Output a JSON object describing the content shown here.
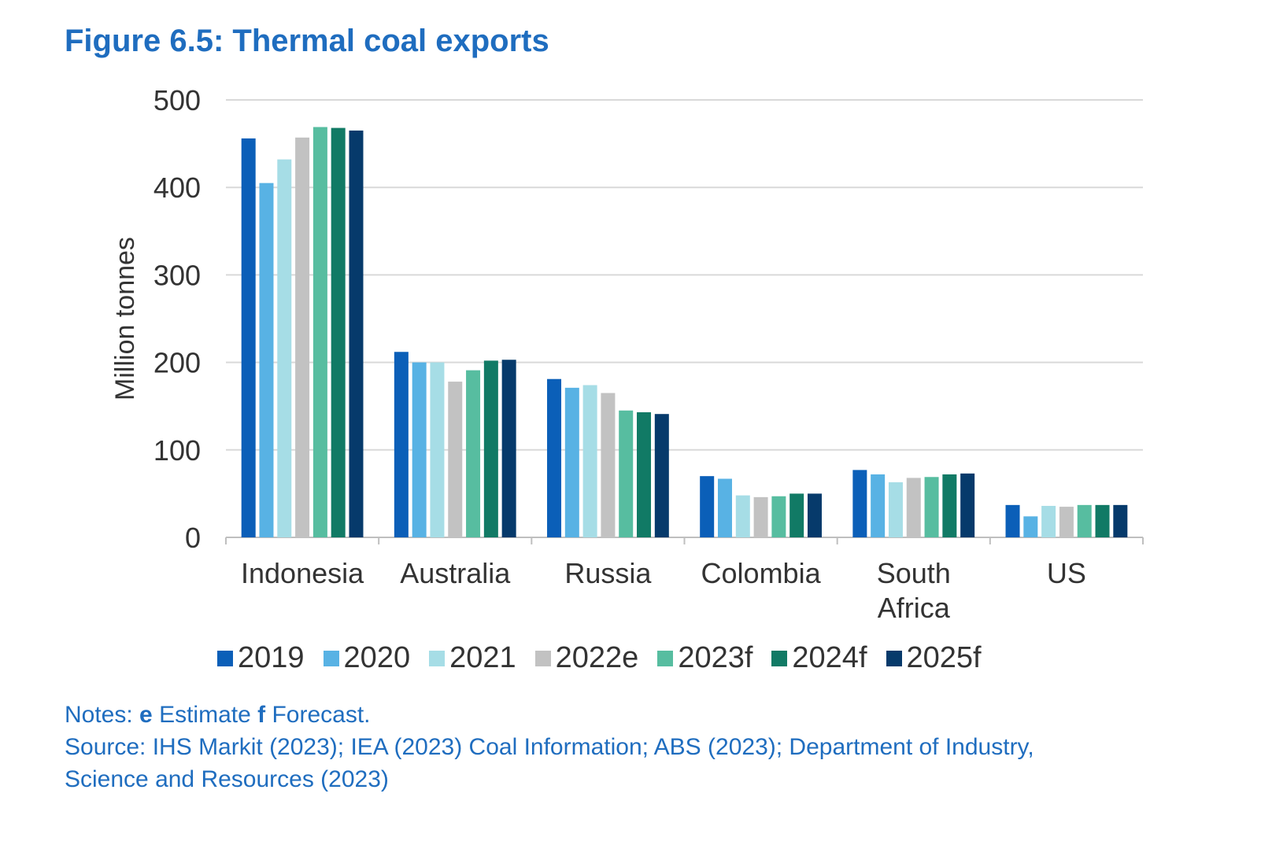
{
  "figure": {
    "title": "Figure 6.5: Thermal coal exports"
  },
  "chart_data": {
    "type": "bar",
    "title": "Figure 6.5: Thermal coal exports",
    "ylabel": "Million tonnes",
    "xlabel": "",
    "ylim": [
      0,
      500
    ],
    "yticks": [
      0,
      100,
      200,
      300,
      400,
      500
    ],
    "grid": true,
    "legend_position": "bottom",
    "categories": [
      "Indonesia",
      "Australia",
      "Russia",
      "Colombia",
      "South Africa",
      "US"
    ],
    "category_label_lines": [
      [
        "Indonesia"
      ],
      [
        "Australia"
      ],
      [
        "Russia"
      ],
      [
        "Colombia"
      ],
      [
        "South",
        "Africa"
      ],
      [
        "US"
      ]
    ],
    "series": [
      {
        "name": "2019",
        "color": "#0b5fb8",
        "values": [
          456,
          212,
          181,
          70,
          77,
          37
        ]
      },
      {
        "name": "2020",
        "color": "#58b2e4",
        "values": [
          405,
          200,
          171,
          67,
          72,
          24
        ]
      },
      {
        "name": "2021",
        "color": "#a6dde6",
        "values": [
          432,
          200,
          174,
          48,
          63,
          36
        ]
      },
      {
        "name": "2022e",
        "color": "#c2c2c2",
        "values": [
          457,
          178,
          165,
          46,
          68,
          35
        ]
      },
      {
        "name": "2023f",
        "color": "#57bda0",
        "values": [
          469,
          191,
          145,
          47,
          69,
          37
        ]
      },
      {
        "name": "2024f",
        "color": "#117a65",
        "values": [
          468,
          202,
          143,
          50,
          72,
          37
        ]
      },
      {
        "name": "2025f",
        "color": "#063a6b",
        "values": [
          465,
          203,
          141,
          50,
          73,
          37
        ]
      }
    ]
  },
  "notes": {
    "prefix": "Notes: ",
    "e_letter": "e",
    "e_text": " Estimate ",
    "f_letter": "f",
    "f_text": " Forecast.",
    "source_line1": "Source: IHS Markit (2023); IEA (2023) Coal Information; ABS (2023); Department of Industry,",
    "source_line2": "Science and Resources (2023)"
  }
}
